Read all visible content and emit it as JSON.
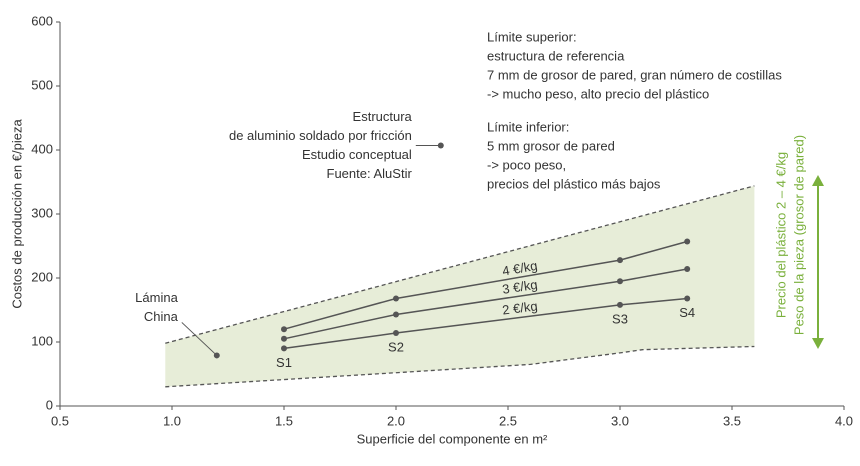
{
  "chart_data": {
    "type": "line",
    "xlabel": "Superficie del componente en m²",
    "ylabel": "Costos de producción en €/pieza",
    "xlim": [
      0.5,
      4.0
    ],
    "xticks": [
      0.5,
      {
        "value": 1,
        "label": "1.0"
      },
      1.5,
      {
        "value": 2,
        "label": "2.0"
      },
      2.5,
      {
        "value": 3,
        "label": "3.0"
      },
      3.5,
      {
        "value": 4,
        "label": "4.0"
      }
    ],
    "ylim": [
      0,
      600
    ],
    "yticks": [
      0,
      100,
      200,
      300,
      400,
      500,
      600
    ],
    "series": [
      {
        "name": "4 €/kg",
        "color": "#555555",
        "x": [
          1.5,
          2.0,
          3.0,
          3.3
        ],
        "values": [
          120,
          168,
          228,
          257
        ]
      },
      {
        "name": "3 €/kg",
        "color": "#555555",
        "x": [
          1.5,
          2.0,
          3.0,
          3.3
        ],
        "values": [
          105,
          143,
          195,
          214
        ]
      },
      {
        "name": "2 €/kg",
        "color": "#555555",
        "x": [
          1.5,
          2.0,
          3.0,
          3.3
        ],
        "values": [
          90,
          114,
          158,
          168
        ]
      }
    ],
    "point_labels": [
      "S1",
      "S2",
      "S3",
      "S4"
    ],
    "band": {
      "color": "#e7edd8",
      "upper": {
        "x": [
          0.97,
          3.6
        ],
        "values": [
          98,
          344
        ]
      },
      "lower": {
        "x": [
          0.97,
          2.0,
          2.6,
          3.0,
          3.1,
          3.6
        ],
        "values": [
          30,
          52,
          65,
          83,
          88,
          93
        ]
      }
    },
    "annotations": [
      {
        "lines": [
          "Estructura",
          "de aluminio soldado por fricción",
          "Estudio conceptual",
          "Fuente: AluStir"
        ],
        "x": 2.2,
        "y": 407
      },
      {
        "lines": [
          "Lámina",
          "China"
        ],
        "x": 1.2,
        "y": 79
      }
    ],
    "notes": [
      [
        "Límite superior:",
        "estructura de referencia",
        "7 mm de grosor de pared, gran número de costillas",
        "-> mucho peso, alto precio del plástico"
      ],
      [
        "Límite inferior:",
        "5 mm grosor de pared",
        "-> poco peso,",
        "precios del plástico más bajos"
      ]
    ],
    "side_labels": [
      "Precio del plástico 2 – 4 €/kg",
      "Peso de la pieza (grosor de pared)"
    ],
    "side_color": "#7ab03c"
  }
}
